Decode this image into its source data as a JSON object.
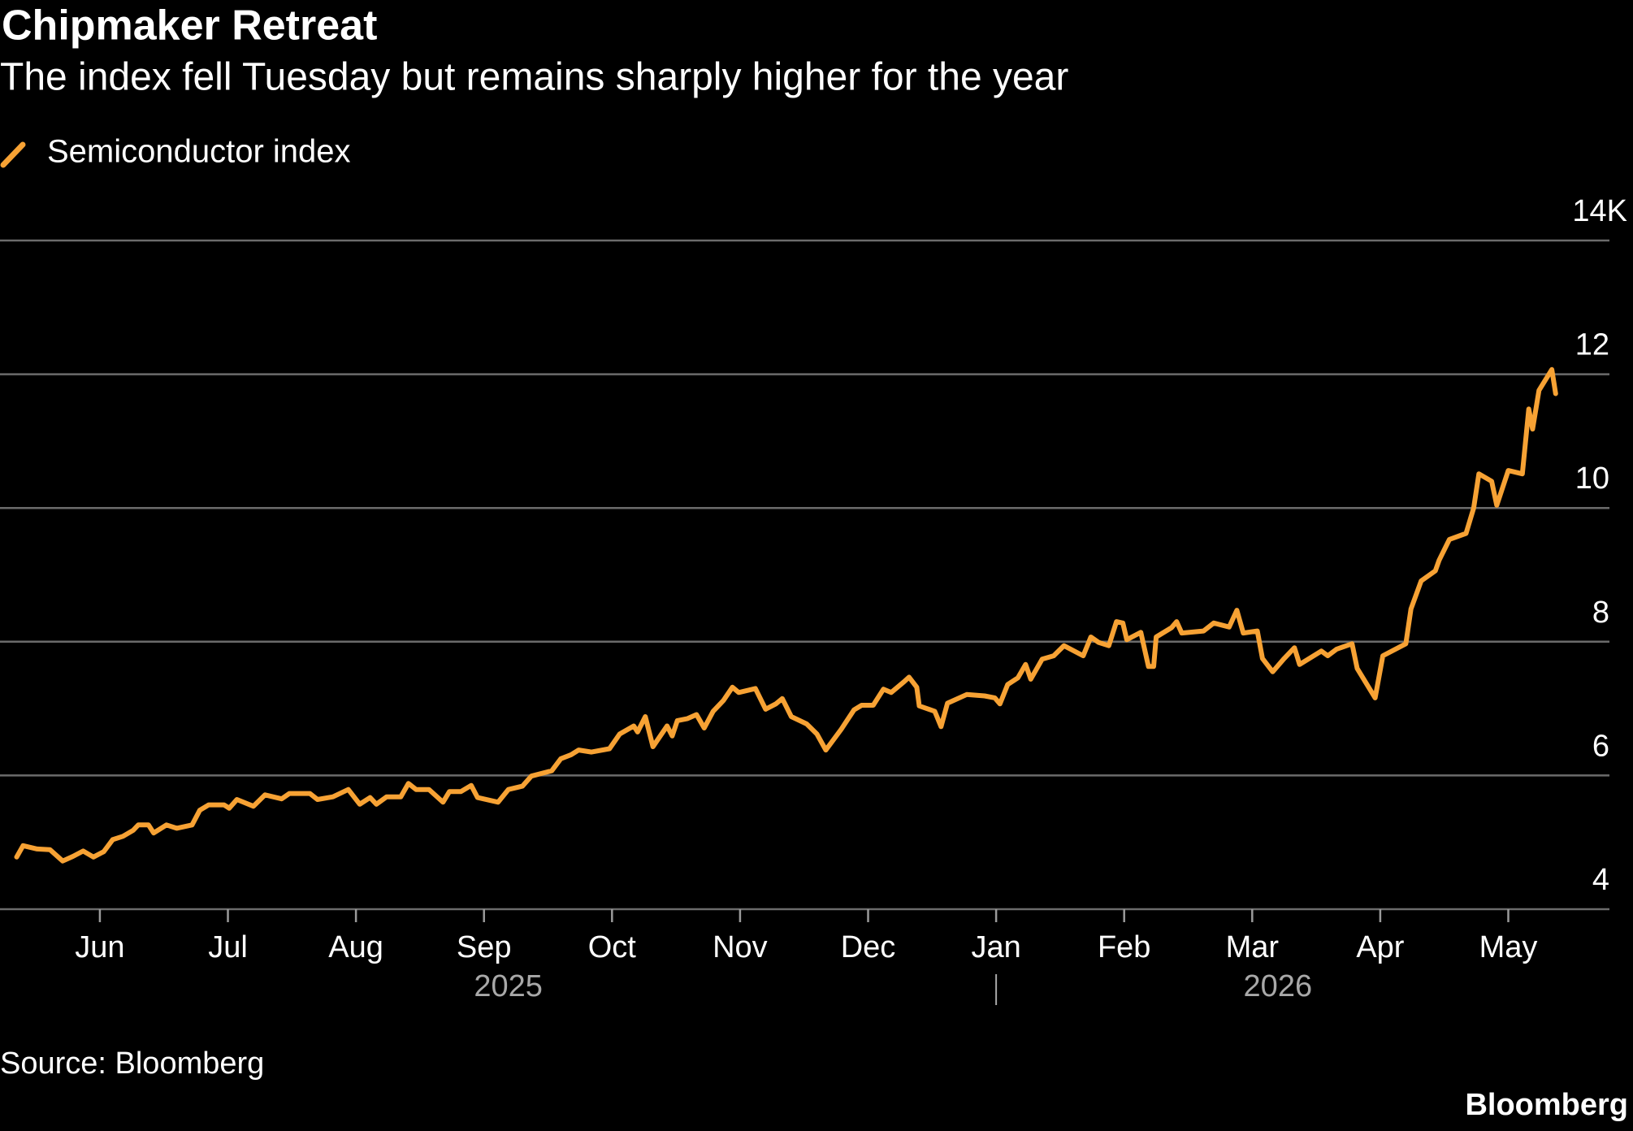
{
  "chart_data": {
    "type": "line",
    "title": "Chipmaker Retreat",
    "subtitle": "The index fell Tuesday but remains sharply higher for the year",
    "source": "Source: Bloomberg",
    "brand": "Bloomberg",
    "x": [
      5.35,
      5.4,
      5.51,
      5.61,
      5.71,
      5.79,
      5.87,
      5.95,
      6.03,
      6.1,
      6.18,
      6.26,
      6.3,
      6.38,
      6.42,
      6.52,
      6.6,
      6.72,
      6.78,
      6.85,
      6.97,
      7.01,
      7.07,
      7.2,
      7.29,
      7.42,
      7.48,
      7.64,
      7.7,
      7.82,
      7.94,
      8.03,
      8.11,
      8.16,
      8.24,
      8.35,
      8.41,
      8.47,
      8.57,
      8.68,
      8.73,
      8.82,
      8.9,
      8.95,
      9.11,
      9.19,
      9.3,
      9.37,
      9.53,
      9.6,
      9.68,
      9.74,
      9.84,
      9.98,
      10.06,
      10.17,
      10.2,
      10.26,
      10.32,
      10.43,
      10.47,
      10.51,
      10.59,
      10.66,
      10.72,
      10.79,
      10.87,
      10.94,
      10.99,
      11.12,
      11.2,
      11.28,
      11.33,
      11.4,
      11.52,
      11.6,
      11.67,
      11.79,
      11.89,
      11.95,
      12.04,
      12.12,
      12.18,
      12.28,
      12.32,
      12.38,
      12.4,
      12.52,
      12.57,
      12.62,
      12.77,
      12.91,
      12.99,
      13.03,
      13.09,
      13.17,
      13.23,
      13.27,
      13.36,
      13.45,
      13.53,
      13.68,
      13.74,
      13.8,
      13.88,
      13.94,
      13.99,
      14.02,
      14.13,
      14.19,
      14.23,
      14.25,
      14.37,
      14.41,
      14.45,
      14.62,
      14.7,
      14.82,
      14.88,
      14.93,
      15.04,
      15.08,
      15.16,
      15.25,
      15.33,
      15.37,
      15.54,
      15.59,
      15.66,
      15.78,
      15.82,
      15.96,
      16.02,
      16.2,
      16.24,
      16.32,
      16.43,
      16.46,
      16.54,
      16.67,
      16.73,
      16.77,
      16.87,
      16.91,
      17.0,
      17.11,
      17.16,
      17.19,
      17.24,
      17.34,
      17.37
    ],
    "series": [
      {
        "name": "Semiconductor index",
        "color": "#f7a234",
        "values": [
          4.78,
          4.95,
          4.9,
          4.89,
          4.72,
          4.79,
          4.87,
          4.78,
          4.86,
          5.04,
          5.09,
          5.18,
          5.26,
          5.26,
          5.14,
          5.26,
          5.21,
          5.26,
          5.48,
          5.56,
          5.56,
          5.51,
          5.64,
          5.54,
          5.71,
          5.65,
          5.73,
          5.73,
          5.64,
          5.68,
          5.79,
          5.57,
          5.67,
          5.57,
          5.68,
          5.68,
          5.88,
          5.79,
          5.79,
          5.6,
          5.76,
          5.76,
          5.85,
          5.67,
          5.6,
          5.79,
          5.84,
          5.99,
          6.07,
          6.25,
          6.31,
          6.38,
          6.35,
          6.4,
          6.62,
          6.74,
          6.65,
          6.88,
          6.43,
          6.74,
          6.59,
          6.82,
          6.85,
          6.91,
          6.71,
          6.96,
          7.12,
          7.32,
          7.24,
          7.3,
          6.99,
          7.07,
          7.15,
          6.88,
          6.77,
          6.62,
          6.38,
          6.69,
          6.98,
          7.05,
          7.05,
          7.29,
          7.24,
          7.4,
          7.47,
          7.32,
          7.04,
          6.96,
          6.73,
          7.08,
          7.21,
          7.19,
          7.16,
          7.07,
          7.36,
          7.46,
          7.66,
          7.44,
          7.74,
          7.79,
          7.94,
          7.79,
          8.07,
          7.99,
          7.94,
          8.3,
          8.28,
          8.03,
          8.14,
          7.63,
          7.63,
          8.07,
          8.21,
          8.3,
          8.13,
          8.16,
          8.28,
          8.22,
          8.47,
          8.13,
          8.16,
          7.75,
          7.55,
          7.75,
          7.91,
          7.66,
          7.86,
          7.79,
          7.89,
          7.97,
          7.6,
          7.16,
          7.79,
          7.97,
          8.49,
          8.91,
          9.06,
          9.22,
          9.53,
          9.62,
          10.0,
          10.51,
          10.4,
          10.04,
          10.56,
          10.51,
          11.48,
          11.18,
          11.76,
          12.07,
          11.71
        ]
      }
    ],
    "xlim": [
      5.22,
      17.79
    ],
    "xticks": [
      {
        "value": 6,
        "label": "Jun"
      },
      {
        "value": 7,
        "label": "Jul"
      },
      {
        "value": 8,
        "label": "Aug"
      },
      {
        "value": 9,
        "label": "Sep"
      },
      {
        "value": 10,
        "label": "Oct"
      },
      {
        "value": 11,
        "label": "Nov"
      },
      {
        "value": 12,
        "label": "Dec"
      },
      {
        "value": 13,
        "label": "Jan"
      },
      {
        "value": 14,
        "label": "Feb"
      },
      {
        "value": 15,
        "label": "Mar"
      },
      {
        "value": 16,
        "label": "Apr"
      },
      {
        "value": 17,
        "label": "May"
      }
    ],
    "year_labels": [
      {
        "value": 9.19,
        "label": "2025"
      },
      {
        "value": 15.2,
        "label": "2026"
      }
    ],
    "year_divider": 13,
    "ylim": [
      4,
      14
    ],
    "yticks": [
      4,
      6,
      8,
      10,
      12,
      {
        "value": 14,
        "label": "14K"
      }
    ],
    "grid": true
  }
}
